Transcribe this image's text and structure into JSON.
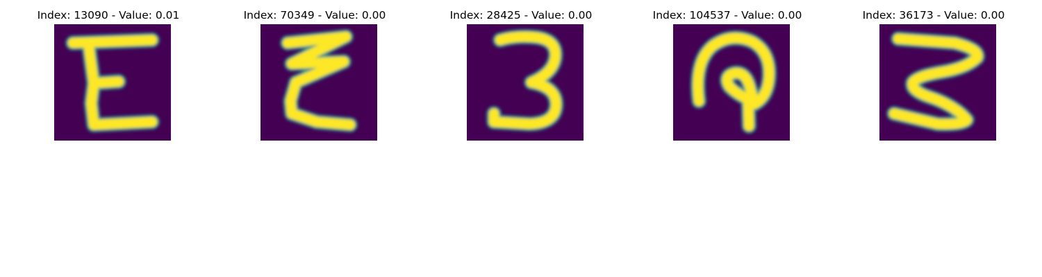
{
  "colors": {
    "background": "#ffffff",
    "cell_low": "#440154",
    "cell_high": "#fde725"
  },
  "panels": [
    {
      "title": "Index: 13090 - Value: 0.01",
      "glyph": "E-like handwritten character",
      "icon": "handwritten-glyph-e"
    },
    {
      "title": "Index: 70349 - Value: 0.00",
      "glyph": "E-like zigzag handwritten character",
      "icon": "handwritten-glyph-zigzag-e"
    },
    {
      "title": "Index: 28425 - Value: 0.00",
      "glyph": "3-like handwritten character",
      "icon": "handwritten-glyph-3"
    },
    {
      "title": "Index: 104537 - Value: 0.00",
      "glyph": "arch with inner hook handwritten character",
      "icon": "handwritten-glyph-arch-hook"
    },
    {
      "title": "Index: 36173 - Value: 0.00",
      "glyph": "Z/3-like handwritten character",
      "icon": "handwritten-glyph-z3"
    }
  ]
}
